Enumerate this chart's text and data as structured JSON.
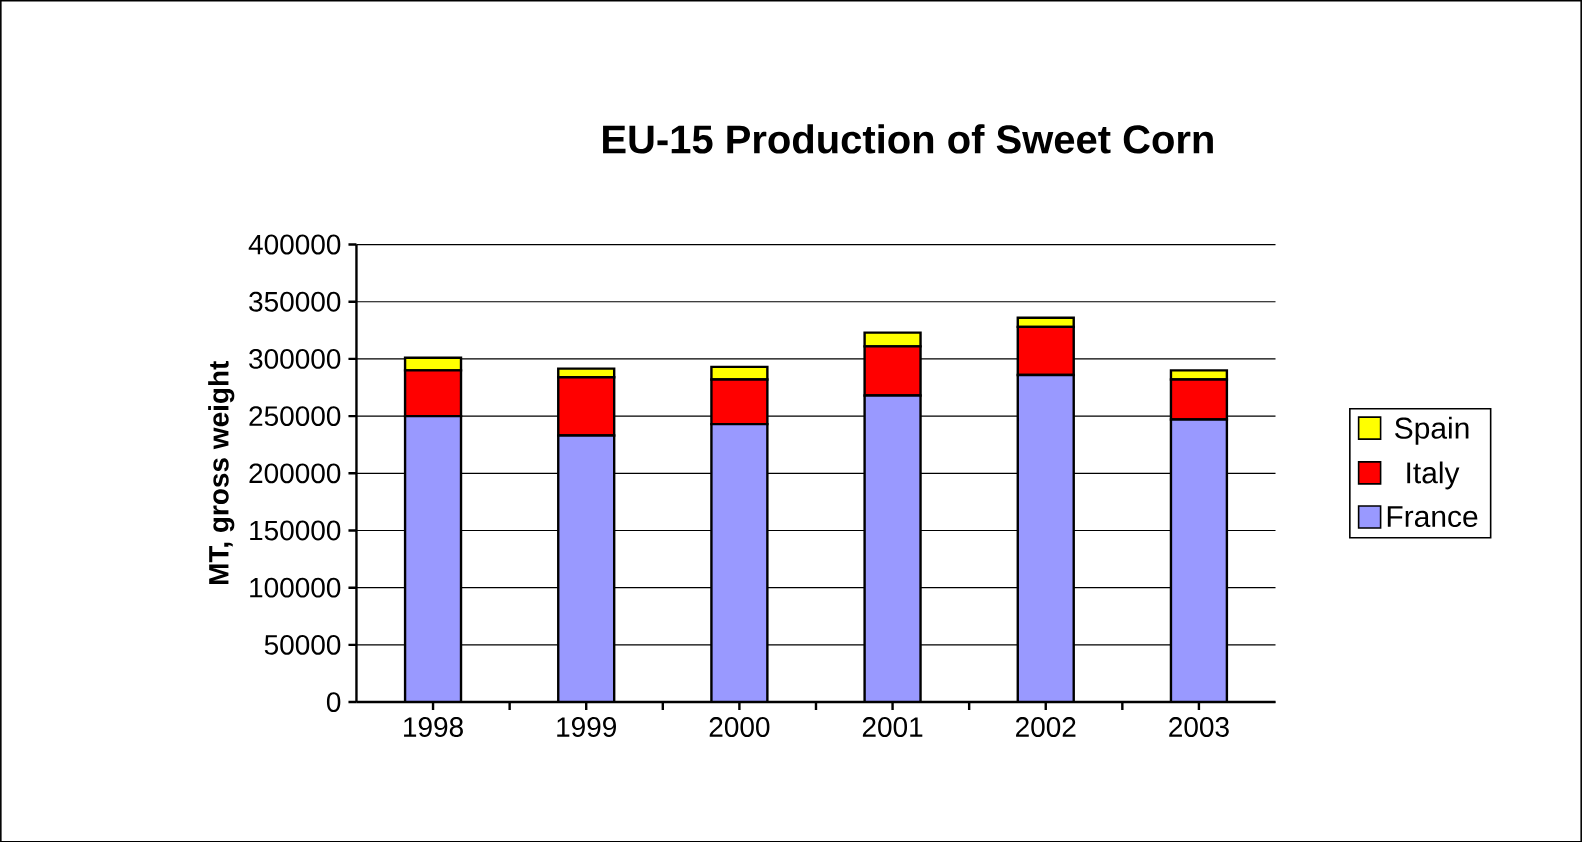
{
  "chart_data": {
    "type": "bar",
    "title": "EU-15 Production of Sweet Corn",
    "ylabel": "MT, gross weight",
    "categories": [
      "1998",
      "1999",
      "2000",
      "2001",
      "2002",
      "2003"
    ],
    "stacked": true,
    "series": [
      {
        "name": "France",
        "color": "#9999ff",
        "values": [
          250000,
          233000,
          243000,
          268000,
          286000,
          247000
        ]
      },
      {
        "name": "Italy",
        "color": "#ff0000",
        "values": [
          40000,
          51000,
          39000,
          43000,
          42000,
          35000
        ]
      },
      {
        "name": "Spain",
        "color": "#ffff00",
        "values": [
          11000,
          7500,
          11000,
          12000,
          8000,
          8000
        ]
      }
    ],
    "ylim": [
      0,
      400000
    ],
    "yticks": [
      0,
      50000,
      100000,
      150000,
      200000,
      250000,
      300000,
      350000,
      400000
    ],
    "grid": "y",
    "legend": "right"
  }
}
